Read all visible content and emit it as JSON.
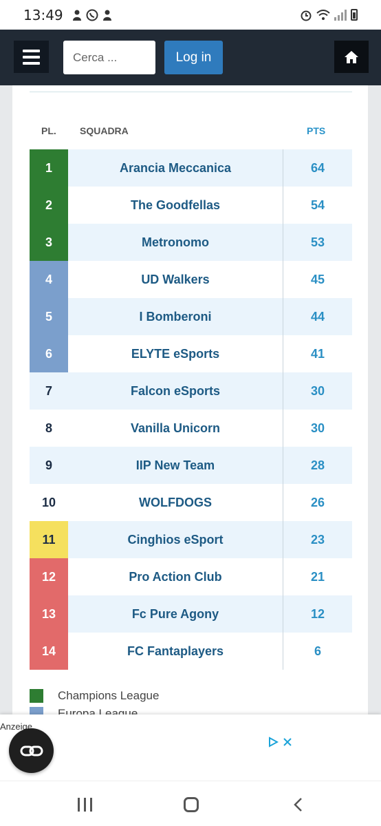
{
  "status_bar": {
    "time": "13:49"
  },
  "header": {
    "search_placeholder": "Cerca ...",
    "login_label": "Log in"
  },
  "table": {
    "col_pos": "PL.",
    "col_team": "SQUADRA",
    "col_pts": "PTS",
    "rows": [
      {
        "pos": "1",
        "team": "Arancia Meccanica",
        "pts": "64",
        "zone": "champions"
      },
      {
        "pos": "2",
        "team": "The Goodfellas",
        "pts": "54",
        "zone": "champions"
      },
      {
        "pos": "3",
        "team": "Metronomo",
        "pts": "53",
        "zone": "champions"
      },
      {
        "pos": "4",
        "team": "UD Walkers",
        "pts": "45",
        "zone": "europa"
      },
      {
        "pos": "5",
        "team": "I Bomberoni",
        "pts": "44",
        "zone": "europa"
      },
      {
        "pos": "6",
        "team": "ELYTE eSports",
        "pts": "41",
        "zone": "europa"
      },
      {
        "pos": "7",
        "team": "Falcon eSports",
        "pts": "30",
        "zone": ""
      },
      {
        "pos": "8",
        "team": "Vanilla Unicorn",
        "pts": "30",
        "zone": ""
      },
      {
        "pos": "9",
        "team": "IIP New Team",
        "pts": "28",
        "zone": ""
      },
      {
        "pos": "10",
        "team": "WOLFDOGS",
        "pts": "26",
        "zone": ""
      },
      {
        "pos": "11",
        "team": "Cinghios eSport",
        "pts": "23",
        "zone": "playoff"
      },
      {
        "pos": "12",
        "team": "Pro Action Club",
        "pts": "21",
        "zone": "relegation"
      },
      {
        "pos": "13",
        "team": "Fc Pure Agony",
        "pts": "12",
        "zone": "relegation"
      },
      {
        "pos": "14",
        "team": "FC Fantaplayers",
        "pts": "6",
        "zone": "relegation"
      }
    ]
  },
  "zone_colors": {
    "champions": "#2e7d32",
    "europa": "#7b9fcc",
    "playoff": "#f5e05e",
    "relegation": "#e26a6a"
  },
  "legend": [
    {
      "label": "Champions League",
      "zone": "champions"
    },
    {
      "label": "Europa League",
      "zone": "europa"
    }
  ],
  "ad": {
    "label": "Anzeige"
  }
}
